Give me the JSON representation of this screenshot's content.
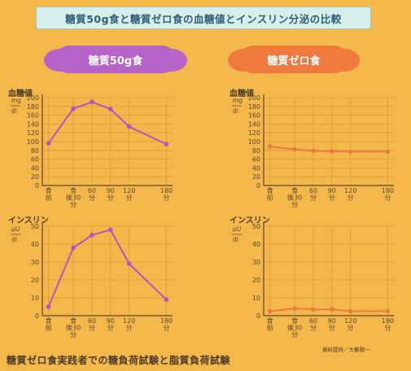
{
  "page_title": "糖質50g食と糖質ゼロ食の血糖値とインスリン分泌の比較",
  "left_panel_title": "糖質50g食",
  "right_panel_title": "糖質ゼロ食",
  "footer": "糖質ゼロ食実践者での糖負荷試験と脂質負荷試験",
  "credit": "資料提供／大櫛陽一",
  "colors": {
    "left_series": "#b553c4",
    "right_series": "#ec7a3e",
    "grid": "#d99a3a",
    "axis": "#5a4632"
  },
  "chart_data": [
    {
      "type": "line",
      "panel": "left",
      "ylabel": "血糖値",
      "unit_top": "mg",
      "unit_bottom": "dl",
      "categories": [
        "食前",
        "食後30分",
        "60分",
        "90分",
        "120分",
        "180分"
      ],
      "tick_labels": [
        [
          "食",
          "前"
        ],
        [
          "食",
          "後30",
          "分"
        ],
        [
          "60",
          "分"
        ],
        [
          "90",
          "分"
        ],
        [
          "120",
          "分"
        ],
        [
          "180",
          "分"
        ]
      ],
      "x": [
        -10,
        30,
        60,
        90,
        120,
        180
      ],
      "values": [
        96,
        175,
        190,
        174,
        134,
        94
      ],
      "ylim": [
        0,
        200
      ],
      "yticks": [
        0,
        20,
        40,
        60,
        80,
        100,
        120,
        140,
        160,
        180,
        200
      ],
      "grid": true
    },
    {
      "type": "line",
      "panel": "right",
      "ylabel": "血糖値",
      "unit_top": "mg",
      "unit_bottom": "dl",
      "categories": [
        "食前",
        "食後30分",
        "60分",
        "90分",
        "120分",
        "180分"
      ],
      "tick_labels": [
        [
          "食",
          "前"
        ],
        [
          "食",
          "後30",
          "分"
        ],
        [
          "60",
          "分"
        ],
        [
          "90",
          "分"
        ],
        [
          "120",
          "分"
        ],
        [
          "180",
          "分"
        ]
      ],
      "x": [
        -10,
        30,
        60,
        90,
        120,
        180
      ],
      "values": [
        89,
        82,
        79,
        78,
        77,
        77
      ],
      "ylim": [
        0,
        200
      ],
      "yticks": [
        0,
        20,
        40,
        60,
        80,
        100,
        120,
        140,
        160,
        180,
        200
      ],
      "grid": true
    },
    {
      "type": "line",
      "panel": "left",
      "ylabel": "インスリン",
      "unit_top": "μU",
      "unit_bottom": "dl",
      "categories": [
        "食前",
        "食後30分",
        "60分",
        "90分",
        "120分",
        "180分"
      ],
      "tick_labels": [
        [
          "食",
          "前"
        ],
        [
          "食",
          "後30",
          "分"
        ],
        [
          "60",
          "分"
        ],
        [
          "90",
          "分"
        ],
        [
          "120",
          "分"
        ],
        [
          "180",
          "分"
        ]
      ],
      "x": [
        -10,
        30,
        60,
        90,
        120,
        180
      ],
      "values": [
        5,
        38,
        45,
        48,
        29,
        9
      ],
      "ylim": [
        0,
        50
      ],
      "yticks": [
        0,
        10,
        20,
        30,
        40,
        50
      ],
      "grid": true
    },
    {
      "type": "line",
      "panel": "right",
      "ylabel": "インスリン",
      "unit_top": "μU",
      "unit_bottom": "dl",
      "categories": [
        "食前",
        "食後30分",
        "60分",
        "90分",
        "120分",
        "180分"
      ],
      "tick_labels": [
        [
          "食",
          "前"
        ],
        [
          "食",
          "後30",
          "分"
        ],
        [
          "60",
          "分"
        ],
        [
          "90",
          "分"
        ],
        [
          "120",
          "分"
        ],
        [
          "180",
          "分"
        ]
      ],
      "x": [
        -10,
        30,
        60,
        90,
        120,
        180
      ],
      "values": [
        2.5,
        4,
        3.5,
        3.5,
        2.5,
        2.5
      ],
      "ylim": [
        0,
        50
      ],
      "yticks": [
        0,
        10,
        20,
        30,
        40,
        50
      ],
      "grid": true
    }
  ]
}
